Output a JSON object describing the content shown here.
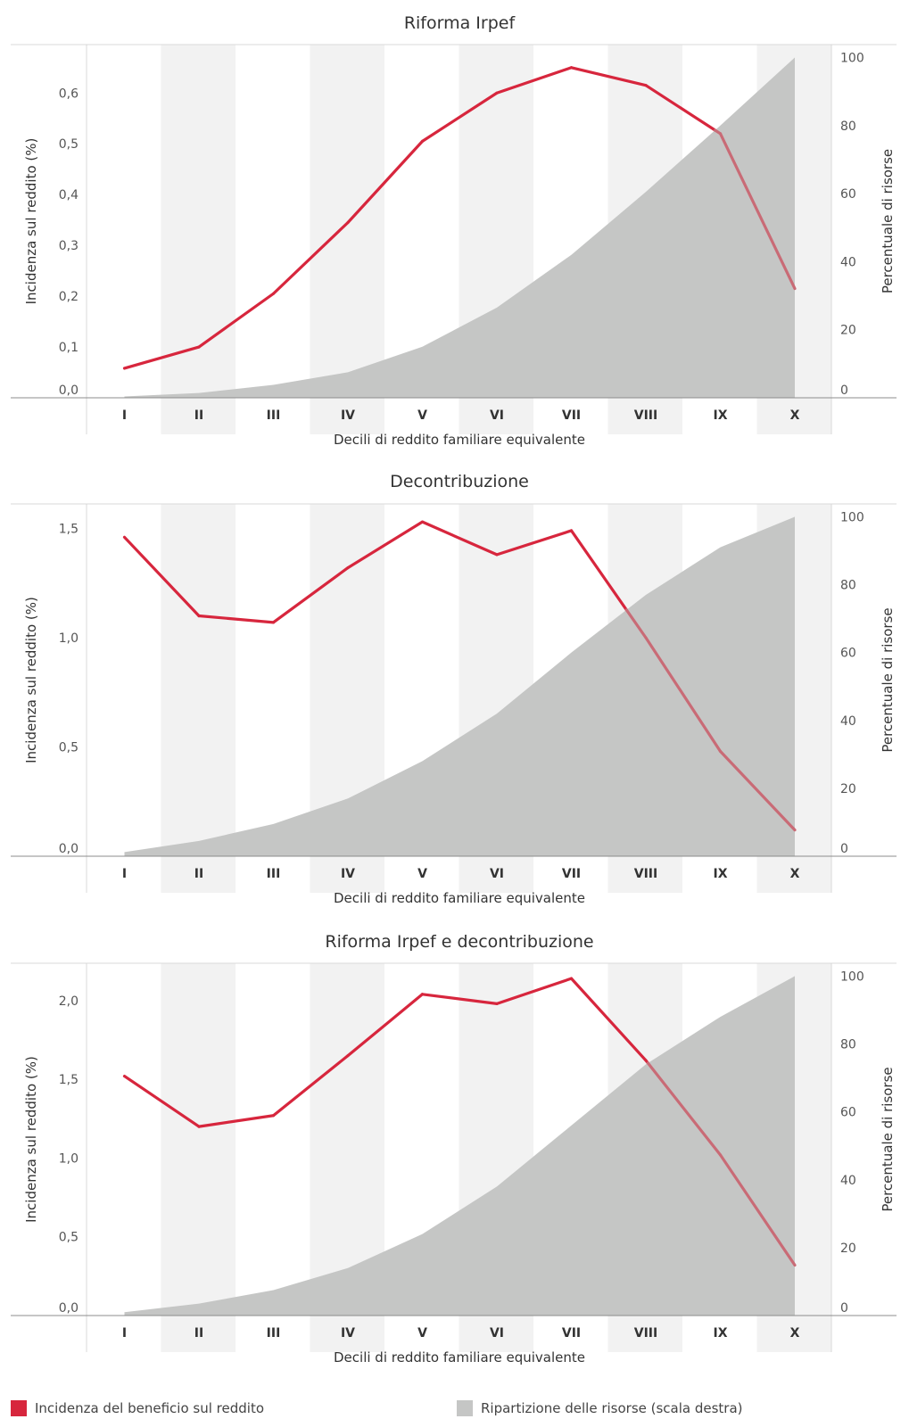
{
  "colors": {
    "line": "#d7263d",
    "line_faded": "#c96b76",
    "area": "#c5c6c5",
    "band": "#f2f2f2"
  },
  "chart_data": [
    {
      "type": "line",
      "title": "Riforma Irpef",
      "xlabel": "Decili di reddito familiare equivalente",
      "ylabel": "Incidenza sul reddito (%)",
      "y2label": "Percentuale di risorse",
      "categories": [
        "I",
        "II",
        "III",
        "IV",
        "V",
        "VI",
        "VII",
        "VIII",
        "IX",
        "X"
      ],
      "ylim": [
        0,
        0.69
      ],
      "y2lim": [
        0,
        103
      ],
      "yticks": [
        0,
        0.1,
        0.2,
        0.3,
        0.4,
        0.5,
        0.6
      ],
      "yticklabels": [
        "0,0",
        "0,1",
        "0,2",
        "0,3",
        "0,4",
        "0,5",
        "0,6"
      ],
      "y2ticks": [
        0,
        20,
        40,
        60,
        80,
        100
      ],
      "y2ticklabels": [
        "0",
        "20",
        "40",
        "60",
        "80",
        "100"
      ],
      "series": [
        {
          "name": "Incidenza del beneficio sul reddito",
          "axis": "left",
          "type": "line",
          "values": [
            0.058,
            0.1,
            0.205,
            0.345,
            0.505,
            0.6,
            0.65,
            0.615,
            0.52,
            0.215
          ]
        },
        {
          "name": "Ripartizione delle risorse (scala destra)",
          "axis": "right",
          "type": "area",
          "values": [
            0.4,
            1.4,
            3.8,
            7.5,
            15.0,
            26.5,
            42.0,
            60.5,
            80.0,
            100
          ]
        }
      ]
    },
    {
      "type": "line",
      "title": "Decontribuzione",
      "xlabel": "Decili di reddito familiare equivalente",
      "ylabel": "Incidenza sul reddito (%)",
      "y2label": "Percentuale di risorse",
      "categories": [
        "I",
        "II",
        "III",
        "IV",
        "V",
        "VI",
        "VII",
        "VIII",
        "IX",
        "X"
      ],
      "ylim": [
        0,
        1.6
      ],
      "y2lim": [
        0,
        103
      ],
      "yticks": [
        0,
        0.5,
        1.0,
        1.5
      ],
      "yticklabels": [
        "0,0",
        "0,5",
        "1,0",
        "1,5"
      ],
      "y2ticks": [
        0,
        20,
        40,
        60,
        80,
        100
      ],
      "y2ticklabels": [
        "0",
        "20",
        "40",
        "60",
        "80",
        "100"
      ],
      "series": [
        {
          "name": "Incidenza del beneficio sul reddito",
          "axis": "left",
          "type": "line",
          "values": [
            1.46,
            1.1,
            1.07,
            1.32,
            1.53,
            1.38,
            1.49,
            1.0,
            0.48,
            0.12
          ]
        },
        {
          "name": "Ripartizione delle risorse (scala destra)",
          "axis": "right",
          "type": "area",
          "values": [
            1.2,
            4.5,
            9.5,
            17.0,
            28.0,
            42.0,
            60.0,
            77.0,
            91.0,
            100
          ]
        }
      ]
    },
    {
      "type": "line",
      "title": "Riforma Irpef e decontribuzione",
      "xlabel": "Decili di reddito familiare equivalente",
      "ylabel": "Incidenza sul reddito (%)",
      "y2label": "Percentuale di risorse",
      "categories": [
        "I",
        "II",
        "III",
        "IV",
        "V",
        "VI",
        "VII",
        "VIII",
        "IX",
        "X"
      ],
      "ylim": [
        0,
        2.22
      ],
      "y2lim": [
        0,
        103
      ],
      "yticks": [
        0,
        0.5,
        1.0,
        1.5,
        2.0
      ],
      "yticklabels": [
        "0,0",
        "0,5",
        "1,0",
        "1,5",
        "2,0"
      ],
      "y2ticks": [
        0,
        20,
        40,
        60,
        80,
        100
      ],
      "y2ticklabels": [
        "0",
        "20",
        "40",
        "60",
        "80",
        "100"
      ],
      "series": [
        {
          "name": "Incidenza del beneficio sul reddito",
          "axis": "left",
          "type": "line",
          "values": [
            1.52,
            1.2,
            1.27,
            1.65,
            2.04,
            1.98,
            2.14,
            1.62,
            1.02,
            0.32
          ]
        },
        {
          "name": "Ripartizione delle risorse (scala destra)",
          "axis": "right",
          "type": "area",
          "values": [
            1.0,
            3.5,
            7.5,
            14.0,
            24.0,
            38.0,
            56.0,
            74.0,
            88.0,
            100
          ]
        }
      ]
    }
  ],
  "legend": {
    "line_label": "Incidenza del beneficio sul reddito",
    "area_label": "Ripartizione delle risorse (scala destra)"
  }
}
